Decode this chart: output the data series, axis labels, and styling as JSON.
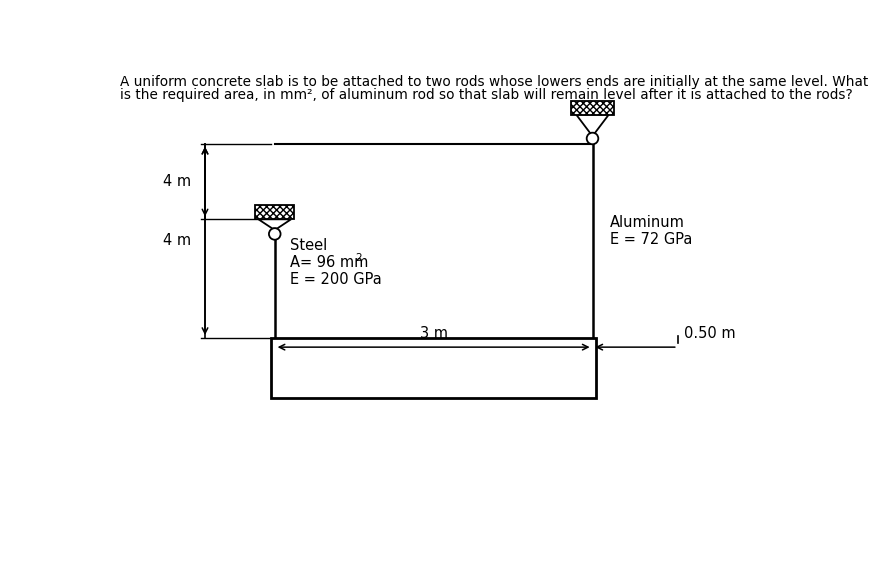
{
  "title_line1": "A uniform concrete slab is to be attached to two rods whose lowers ends are initially at the same level. What",
  "title_line2": "is the required area, in mm², of aluminum rod so that slab will remain level after it is attached to the rods?",
  "bg_color": "#ffffff",
  "text_color": "#000000",
  "steel_label": "Steel",
  "steel_modulus": "E = 200 GPa",
  "alum_label": "Aluminum",
  "alum_modulus": "E = 72 GPa",
  "dim_upper": "4 m",
  "dim_lower": "4 m",
  "dim_horiz": "3 m",
  "dim_right": "0.50 m",
  "fig_w": 8.96,
  "fig_h": 5.7,
  "dpi": 100
}
